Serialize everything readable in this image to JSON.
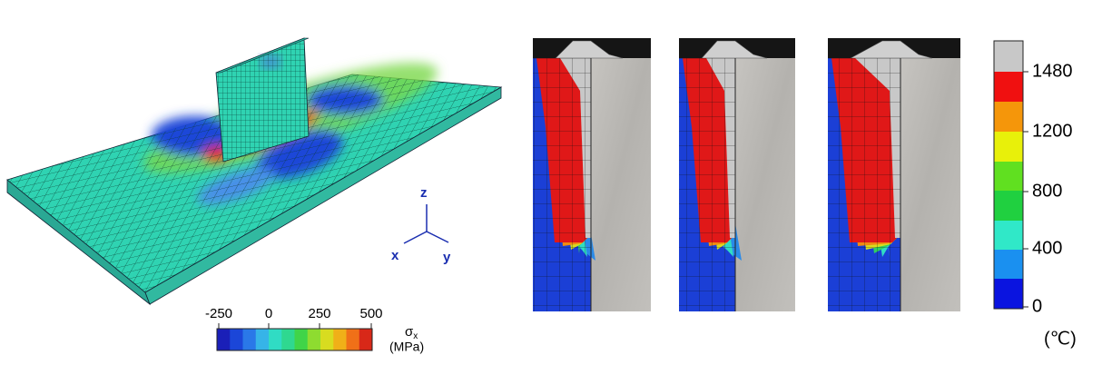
{
  "stress_legend": {
    "ticks": [
      -250,
      0,
      250,
      500
    ],
    "symbol": "σ",
    "subscript": "x",
    "unit": "(MPa)"
  },
  "axes": {
    "z": "z",
    "x": "x",
    "y": "y"
  },
  "temperature_legend": {
    "ticks": [
      1480,
      1200,
      800,
      400,
      0
    ],
    "unit": "(℃)"
  }
}
